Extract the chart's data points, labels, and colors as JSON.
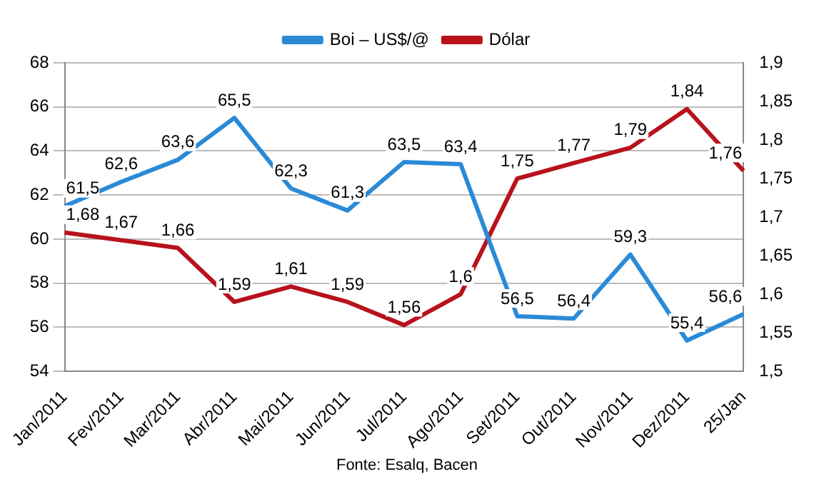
{
  "chart_data": {
    "type": "line",
    "categories": [
      "Jan/2011",
      "Fev/2011",
      "Mar/2011",
      "Abr/2011",
      "Mai/2011",
      "Jun/2011",
      "Jul/2011",
      "Ago/2011",
      "Set/2011",
      "Out/2011",
      "Nov/2011",
      "Dez/2011",
      "25/Jan"
    ],
    "series": [
      {
        "name": "Boi – US$/@",
        "color": "#2b8ad6",
        "values": [
          61.5,
          62.6,
          63.6,
          65.5,
          62.3,
          61.3,
          63.5,
          63.4,
          56.5,
          56.4,
          59.3,
          55.4,
          56.6
        ],
        "value_labels": [
          "61,5",
          "62,6",
          "63,6",
          "65,5",
          "62,3",
          "61,3",
          "63,5",
          "63,4",
          "56,5",
          "56,4",
          "59,3",
          "55,4",
          "56,6"
        ]
      },
      {
        "name": "Dólar",
        "color": "#b8121c",
        "axis": "y2",
        "values": [
          1.68,
          1.67,
          1.66,
          1.59,
          1.61,
          1.59,
          1.56,
          1.6,
          1.75,
          1.77,
          1.79,
          1.84,
          1.76
        ],
        "value_labels": [
          "1,68",
          "1,67",
          "1,66",
          "1,59",
          "1,61",
          "1,59",
          "1,56",
          "1,6",
          "1,75",
          "1,77",
          "1,79",
          "1,84",
          "1,76"
        ]
      }
    ],
    "ylim": [
      54,
      68
    ],
    "yticks": [
      54,
      56,
      58,
      60,
      62,
      64,
      66,
      68
    ],
    "y2lim": [
      1.5,
      1.9
    ],
    "y2ticks": [
      {
        "value": 1.5,
        "label": "1,5"
      },
      {
        "value": 1.55,
        "label": "1,55"
      },
      {
        "value": 1.6,
        "label": "1,6"
      },
      {
        "value": 1.65,
        "label": "1,65"
      },
      {
        "value": 1.7,
        "label": "1,7"
      },
      {
        "value": 1.75,
        "label": "1,75"
      },
      {
        "value": 1.8,
        "label": "1,8"
      },
      {
        "value": 1.85,
        "label": "1,85"
      },
      {
        "value": 1.9,
        "label": "1,9"
      }
    ],
    "grid": "y",
    "legend": "top",
    "marker": "none",
    "line_style": "solid",
    "annotations": [
      "Fonte: Esalq, Bacen"
    ]
  }
}
